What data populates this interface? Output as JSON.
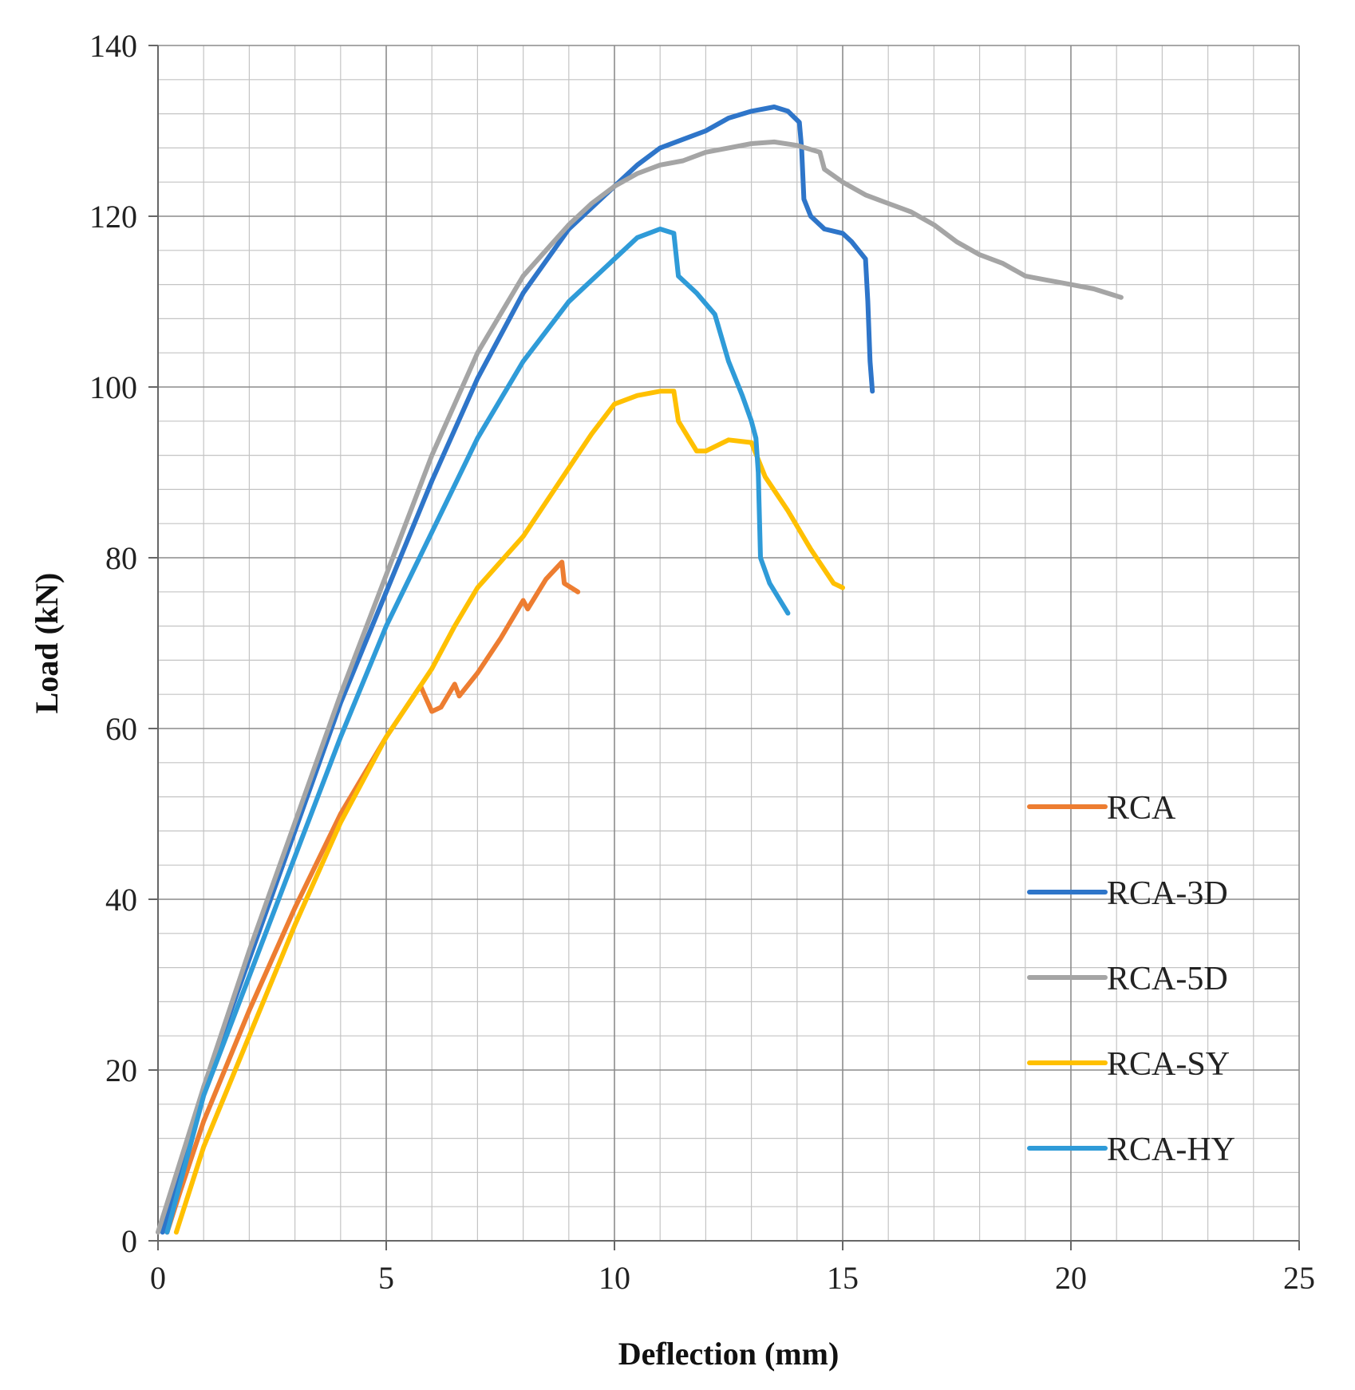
{
  "chart_data": {
    "type": "line",
    "title": "",
    "xlabel": "Deflection (mm)",
    "ylabel": "Load (kN)",
    "xlim": [
      0,
      25
    ],
    "ylim": [
      0,
      140
    ],
    "x_ticks": [
      0,
      5,
      10,
      15,
      20,
      25
    ],
    "y_ticks": [
      0,
      20,
      40,
      60,
      80,
      100,
      120,
      140
    ],
    "x_minor_step": 1,
    "y_minor_step": 4,
    "grid": true,
    "legend_position": "right",
    "series": [
      {
        "name": "RCA",
        "color": "#ED7D31",
        "points": [
          [
            0.2,
            1
          ],
          [
            0.5,
            6
          ],
          [
            1,
            14
          ],
          [
            2,
            27
          ],
          [
            3,
            39
          ],
          [
            4,
            50
          ],
          [
            5,
            59
          ],
          [
            5.5,
            63
          ],
          [
            5.75,
            65
          ],
          [
            6,
            62
          ],
          [
            6.2,
            62.5
          ],
          [
            6.5,
            65.2
          ],
          [
            6.6,
            63.8
          ],
          [
            7,
            66.5
          ],
          [
            7.5,
            70.5
          ],
          [
            8,
            75
          ],
          [
            8.1,
            74
          ],
          [
            8.5,
            77.5
          ],
          [
            8.85,
            79.5
          ],
          [
            8.9,
            77
          ],
          [
            9.2,
            76
          ]
        ]
      },
      {
        "name": "RCA-3D",
        "color": "#2E75C9",
        "points": [
          [
            0.1,
            1
          ],
          [
            1,
            18
          ],
          [
            2,
            33
          ],
          [
            3,
            48
          ],
          [
            4,
            63
          ],
          [
            5,
            76
          ],
          [
            6,
            89
          ],
          [
            7,
            101
          ],
          [
            8,
            111
          ],
          [
            9,
            118.5
          ],
          [
            10,
            123.5
          ],
          [
            10.5,
            126
          ],
          [
            11,
            128
          ],
          [
            11.5,
            129
          ],
          [
            12,
            130
          ],
          [
            12.5,
            131.5
          ],
          [
            13,
            132.3
          ],
          [
            13.5,
            132.8
          ],
          [
            13.8,
            132.3
          ],
          [
            14.05,
            131
          ],
          [
            14.1,
            128
          ],
          [
            14.15,
            122
          ],
          [
            14.3,
            120
          ],
          [
            14.6,
            118.5
          ],
          [
            15,
            118
          ],
          [
            15.2,
            117
          ],
          [
            15.5,
            115
          ],
          [
            15.55,
            110
          ],
          [
            15.6,
            103
          ],
          [
            15.65,
            99.5
          ]
        ]
      },
      {
        "name": "RCA-5D",
        "color": "#A5A5A5",
        "points": [
          [
            0,
            1
          ],
          [
            1,
            18
          ],
          [
            2,
            34
          ],
          [
            3,
            49
          ],
          [
            4,
            64
          ],
          [
            5,
            78
          ],
          [
            6,
            92
          ],
          [
            7,
            104
          ],
          [
            8,
            113
          ],
          [
            8.5,
            116
          ],
          [
            9,
            119
          ],
          [
            9.5,
            121.5
          ],
          [
            10,
            123.5
          ],
          [
            10.5,
            125
          ],
          [
            11,
            126
          ],
          [
            11.5,
            126.5
          ],
          [
            12,
            127.5
          ],
          [
            12.5,
            128
          ],
          [
            13,
            128.5
          ],
          [
            13.5,
            128.7
          ],
          [
            14,
            128.3
          ],
          [
            14.5,
            127.5
          ],
          [
            14.6,
            125.5
          ],
          [
            15,
            124
          ],
          [
            15.5,
            122.5
          ],
          [
            16,
            121.5
          ],
          [
            16.5,
            120.5
          ],
          [
            17,
            119
          ],
          [
            17.5,
            117
          ],
          [
            18,
            115.5
          ],
          [
            18.5,
            114.5
          ],
          [
            19,
            113
          ],
          [
            19.5,
            112.5
          ],
          [
            20,
            112
          ],
          [
            20.5,
            111.5
          ],
          [
            21.1,
            110.5
          ]
        ]
      },
      {
        "name": "RCA-SY",
        "color": "#FFC000",
        "points": [
          [
            0.4,
            1
          ],
          [
            1,
            11
          ],
          [
            2,
            24
          ],
          [
            3,
            37
          ],
          [
            4,
            49
          ],
          [
            5,
            59
          ],
          [
            6,
            67
          ],
          [
            6.5,
            72
          ],
          [
            7,
            76.5
          ],
          [
            8,
            82.5
          ],
          [
            9,
            90.5
          ],
          [
            9.5,
            94.5
          ],
          [
            10,
            98
          ],
          [
            10.5,
            99
          ],
          [
            11,
            99.5
          ],
          [
            11.3,
            99.5
          ],
          [
            11.4,
            96
          ],
          [
            11.8,
            92.5
          ],
          [
            12,
            92.5
          ],
          [
            12.5,
            93.8
          ],
          [
            13,
            93.5
          ],
          [
            13.3,
            89.5
          ],
          [
            13.8,
            85.5
          ],
          [
            14.3,
            81
          ],
          [
            14.8,
            77
          ],
          [
            15,
            76.5
          ]
        ]
      },
      {
        "name": "RCA-HY",
        "color": "#2F9BD8",
        "points": [
          [
            0.2,
            1
          ],
          [
            1,
            17
          ],
          [
            2,
            31
          ],
          [
            3,
            45
          ],
          [
            4,
            59
          ],
          [
            5,
            72
          ],
          [
            6,
            83
          ],
          [
            7,
            94
          ],
          [
            8,
            103
          ],
          [
            9,
            110
          ],
          [
            10,
            115
          ],
          [
            10.5,
            117.5
          ],
          [
            11,
            118.5
          ],
          [
            11.3,
            118
          ],
          [
            11.4,
            113
          ],
          [
            11.8,
            111
          ],
          [
            12.2,
            108.5
          ],
          [
            12.5,
            103
          ],
          [
            12.8,
            99
          ],
          [
            13,
            96
          ],
          [
            13.1,
            94
          ],
          [
            13.15,
            90
          ],
          [
            13.2,
            80
          ],
          [
            13.4,
            77
          ],
          [
            13.8,
            73.5
          ]
        ]
      }
    ]
  }
}
